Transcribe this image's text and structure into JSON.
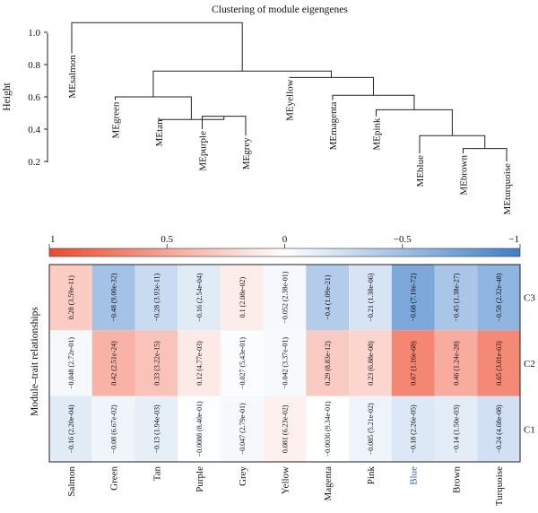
{
  "chart_data": [
    {
      "type": "dendrogram",
      "title": "Clustering of module eigengenes",
      "ylabel": "Height",
      "ylim": [
        0.2,
        1.1
      ],
      "yticks": [
        0.2,
        0.4,
        0.6,
        0.8,
        1.0
      ],
      "ytick_labels": [
        "0.2",
        "0.4",
        "0.6",
        "0.8",
        "1.0"
      ],
      "leaves": [
        "MEsalmon",
        "MEgreen",
        "MEtan",
        "MEpurple",
        "MEgrey",
        "MEyellow",
        "MEmagenta",
        "MEpink",
        "MEblue",
        "MEbrown",
        "MEturquoise"
      ],
      "leaf_heights": [
        0.87,
        0.58,
        0.47,
        0.4,
        0.36,
        0.72,
        0.58,
        0.48,
        0.25,
        0.25,
        0.2
      ],
      "merges": [
        {
          "left": "L3",
          "right": "L4",
          "height": 0.48,
          "id": "A"
        },
        {
          "left": "L2",
          "right": "A",
          "height": 0.46,
          "id": "B"
        },
        {
          "left": "L1",
          "right": "B",
          "height": 0.6,
          "id": "C"
        },
        {
          "left": "L9",
          "right": "L10",
          "height": 0.28,
          "id": "D"
        },
        {
          "left": "L8",
          "right": "D",
          "height": 0.36,
          "id": "E"
        },
        {
          "left": "L7",
          "right": "E",
          "height": 0.52,
          "id": "F"
        },
        {
          "left": "L6",
          "right": "F",
          "height": 0.61,
          "id": "G"
        },
        {
          "left": "L5",
          "right": "G",
          "height": 0.72,
          "id": "H"
        },
        {
          "left": "C",
          "right": "H",
          "height": 0.76,
          "id": "I"
        },
        {
          "left": "L0",
          "right": "I",
          "height": 1.06,
          "id": "J"
        }
      ]
    },
    {
      "type": "heatmap",
      "ylabel": "Module–trait relationships",
      "colorbar": {
        "range": [
          1,
          -1
        ],
        "ticks": [
          1,
          0.5,
          0,
          -0.5,
          -1
        ],
        "tick_labels": [
          "1",
          "0.5",
          "0",
          "−0.5",
          "−1"
        ],
        "low_color": "#3f7fc9",
        "mid_color": "#ffffff",
        "high_color": "#ee4a2c"
      },
      "columns": [
        "Salmon",
        "Green",
        "Tan",
        "Purple",
        "Grey",
        "Yellow",
        "Magenta",
        "Pink",
        "Blue",
        "Brown",
        "Turquoise"
      ],
      "highlight_column": "Blue",
      "highlight_color": "#2f5fb3",
      "rows": [
        "C3",
        "C2",
        "C1"
      ],
      "values": [
        [
          0.28,
          -0.48,
          -0.28,
          -0.16,
          0.1,
          -0.052,
          -0.4,
          -0.21,
          -0.68,
          -0.45,
          -0.58
        ],
        [
          -0.048,
          0.42,
          0.33,
          0.12,
          -0.027,
          -0.042,
          0.29,
          0.23,
          0.67,
          0.46,
          0.65
        ],
        [
          -0.16,
          -0.08,
          -0.13,
          -0.0088,
          -0.047,
          0.081,
          -0.0036,
          -0.085,
          -0.18,
          -0.14,
          -0.24
        ]
      ],
      "cell_labels": [
        [
          "0.28 (3.59e-11)",
          "−0.48 (9.00e-32)",
          "−0.28 (3.93e-11)",
          "−0.16 (2.54e-04)",
          "0.1 (2.08e-02)",
          "−0.052 (2.38e-01)",
          "−0.4 (1.09e-21)",
          "−0.21 (1.38e-06)",
          "−0.68 (7.10e-72)",
          "−0.45 (1.38e-27)",
          "−0.58 (2.32e-48)"
        ],
        [
          "−0.048 (2.72e-01)",
          "0.42 (2.51e-24)",
          "0.33 (3.22e-15)",
          "0.12 (4.77e-03)",
          "−0.027 (5.43e-01)",
          "−0.042 (3.37e-01)",
          "0.29 (8.83e-12)",
          "0.23 (6.88e-08)",
          "0.67 (1.16e-68)",
          "0.46 (1.24e-28)",
          "0.65 (3.01e-63)"
        ],
        [
          "−0.16 (2.20e-04)",
          "−0.08 (6.67e-02)",
          "−0.13 (1.94e-03)",
          "−0.0088 (8.40e-01)",
          "−0.047 (2.79e-01)",
          "0.081 (6.23e-02)",
          "−0.0036 (9.34e-01)",
          "−0.085 (5.21e-02)",
          "−0.18 (2.26e-05)",
          "−0.14 (1.50e-03)",
          "−0.24 (4.68e-08)"
        ]
      ]
    }
  ]
}
